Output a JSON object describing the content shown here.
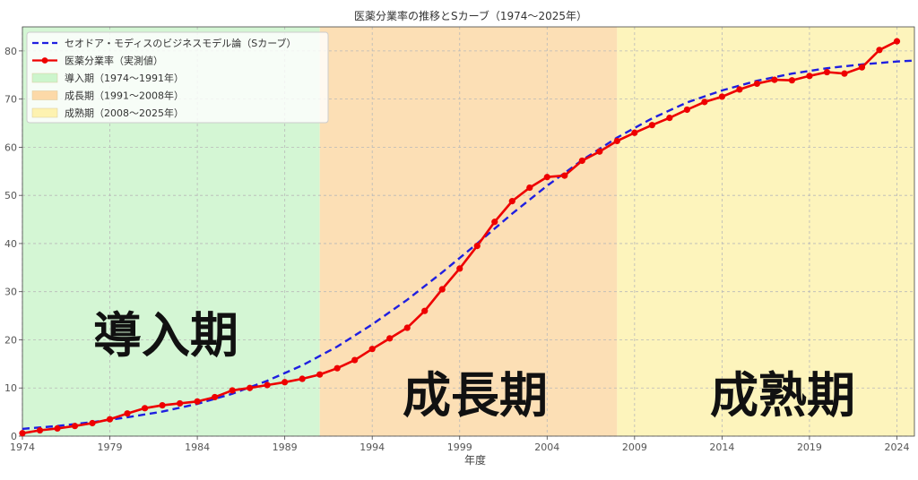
{
  "chart_data": {
    "type": "line",
    "title": "医薬分業率の推移とSカーブ（1974〜2025年）",
    "xlabel": "年度",
    "ylabel": "",
    "xlim": [
      1974,
      2025
    ],
    "ylim": [
      0,
      85
    ],
    "x_ticks": [
      1974,
      1979,
      1984,
      1989,
      1994,
      1999,
      2004,
      2009,
      2014,
      2019,
      2024
    ],
    "y_ticks": [
      0,
      10,
      20,
      30,
      40,
      50,
      60,
      70,
      80
    ],
    "grid": true,
    "legend_position": "top-left",
    "series": [
      {
        "name": "セオドア・モディスのビジネスモデル論（Sカーブ）",
        "style": "dashed",
        "color": "#1f1fe0",
        "x": [
          1974,
          1976,
          1978,
          1980,
          1982,
          1984,
          1986,
          1988,
          1990,
          1992,
          1994,
          1996,
          1998,
          2000,
          2002,
          2004,
          2006,
          2008,
          2010,
          2012,
          2014,
          2016,
          2018,
          2020,
          2022,
          2024,
          2025
        ],
        "values": [
          1.5,
          2.1,
          2.9,
          3.9,
          5.1,
          6.7,
          8.8,
          11.5,
          14.7,
          18.6,
          23.2,
          28.3,
          34.0,
          40.0,
          46.2,
          52.0,
          57.3,
          62.0,
          66.0,
          69.3,
          71.8,
          73.8,
          75.3,
          76.4,
          77.2,
          77.8,
          78.0
        ]
      },
      {
        "name": "医薬分業率（実測値）",
        "style": "solid-markers",
        "color": "#ee0000",
        "x": [
          1974,
          1975,
          1976,
          1977,
          1978,
          1979,
          1980,
          1981,
          1982,
          1983,
          1984,
          1985,
          1986,
          1987,
          1988,
          1989,
          1990,
          1991,
          1992,
          1993,
          1994,
          1995,
          1996,
          1997,
          1998,
          1999,
          2000,
          2001,
          2002,
          2003,
          2004,
          2005,
          2006,
          2007,
          2008,
          2009,
          2010,
          2011,
          2012,
          2013,
          2014,
          2015,
          2016,
          2017,
          2018,
          2019,
          2020,
          2021,
          2022,
          2023,
          2024
        ],
        "values": [
          0.6,
          1.2,
          1.6,
          2.1,
          2.7,
          3.5,
          4.7,
          5.8,
          6.4,
          6.8,
          7.2,
          8.1,
          9.5,
          10.0,
          10.6,
          11.2,
          11.9,
          12.8,
          14.1,
          15.8,
          18.1,
          20.3,
          22.5,
          26.0,
          30.5,
          34.8,
          39.5,
          44.5,
          48.8,
          51.6,
          53.8,
          54.1,
          57.2,
          59.1,
          61.3,
          63.0,
          64.6,
          66.1,
          67.8,
          69.4,
          70.5,
          72.0,
          73.2,
          74.0,
          73.9,
          74.8,
          75.6,
          75.3,
          76.6,
          80.2,
          82.0
        ]
      }
    ],
    "phases": [
      {
        "name": "導入期（1974〜1991年）",
        "from": 1974,
        "to": 1991,
        "color": "#ccf5cc",
        "label": "導入期"
      },
      {
        "name": "成長期（1991〜2008年）",
        "from": 1991,
        "to": 2008,
        "color": "#fcd9a8",
        "label": "成長期"
      },
      {
        "name": "成熟期（2008〜2025年）",
        "from": 2008,
        "to": 2025,
        "color": "#fdf2b0",
        "label": "成熟期"
      }
    ]
  }
}
